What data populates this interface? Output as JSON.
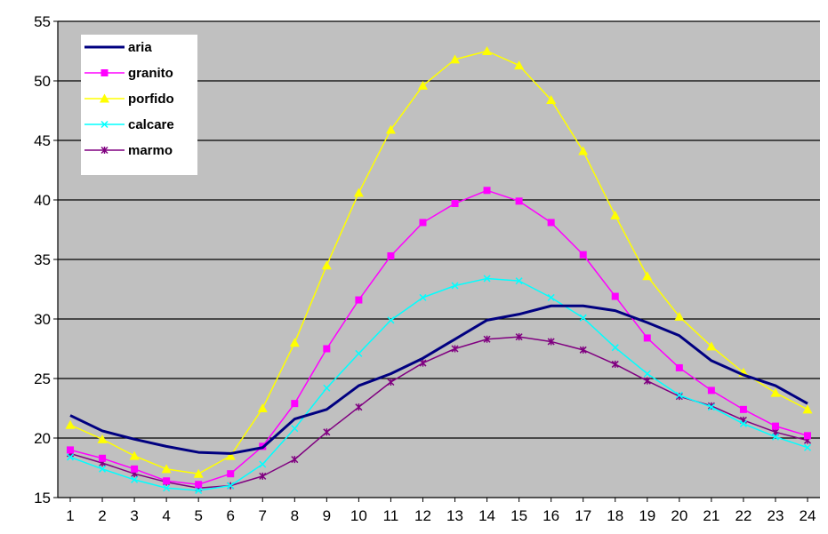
{
  "chart_data": {
    "type": "line",
    "title": "",
    "xlabel": "",
    "ylabel": "",
    "x": [
      1,
      2,
      3,
      4,
      5,
      6,
      7,
      8,
      9,
      10,
      11,
      12,
      13,
      14,
      15,
      16,
      17,
      18,
      19,
      20,
      21,
      22,
      23,
      24
    ],
    "ylim": [
      15,
      55
    ],
    "yticks": [
      15,
      20,
      25,
      30,
      35,
      40,
      45,
      50,
      55
    ],
    "grid": "horizontal",
    "legend_position": "top-left",
    "background": "#c0c0c0",
    "series": [
      {
        "name": "aria",
        "color": "#000080",
        "marker": "none",
        "values": [
          21.9,
          20.6,
          19.9,
          19.3,
          18.8,
          18.7,
          19.2,
          21.6,
          22.4,
          24.4,
          25.4,
          26.7,
          28.3,
          29.9,
          30.4,
          31.1,
          31.1,
          30.7,
          29.7,
          28.6,
          26.5,
          25.3,
          24.4,
          22.9
        ]
      },
      {
        "name": "granito",
        "color": "#ff00ff",
        "marker": "square",
        "values": [
          19.0,
          18.3,
          17.4,
          16.4,
          16.1,
          17.0,
          19.3,
          22.9,
          27.5,
          31.6,
          35.3,
          38.1,
          39.7,
          40.8,
          39.9,
          38.1,
          35.4,
          31.9,
          28.4,
          25.9,
          24.0,
          22.4,
          21.0,
          20.2
        ]
      },
      {
        "name": "porfido",
        "color": "#ffff00",
        "marker": "triangle",
        "values": [
          21.1,
          19.9,
          18.5,
          17.4,
          17.0,
          18.5,
          22.5,
          28.0,
          34.5,
          40.6,
          45.9,
          49.6,
          51.8,
          52.5,
          51.3,
          48.4,
          44.1,
          38.7,
          33.6,
          30.2,
          27.7,
          25.5,
          23.8,
          22.4
        ]
      },
      {
        "name": "calcare",
        "color": "#00ffff",
        "marker": "x",
        "values": [
          18.4,
          17.4,
          16.5,
          15.8,
          15.6,
          16.0,
          17.8,
          20.8,
          24.2,
          27.1,
          29.9,
          31.8,
          32.8,
          33.4,
          33.2,
          31.8,
          30.1,
          27.6,
          25.4,
          23.6,
          22.6,
          21.2,
          20.1,
          19.2
        ]
      },
      {
        "name": "marmo",
        "color": "#800080",
        "marker": "asterisk",
        "values": [
          18.7,
          17.9,
          17.0,
          16.3,
          15.8,
          16.0,
          16.8,
          18.2,
          20.5,
          22.6,
          24.7,
          26.3,
          27.5,
          28.3,
          28.5,
          28.1,
          27.4,
          26.2,
          24.8,
          23.5,
          22.7,
          21.5,
          20.5,
          19.8
        ]
      }
    ]
  }
}
